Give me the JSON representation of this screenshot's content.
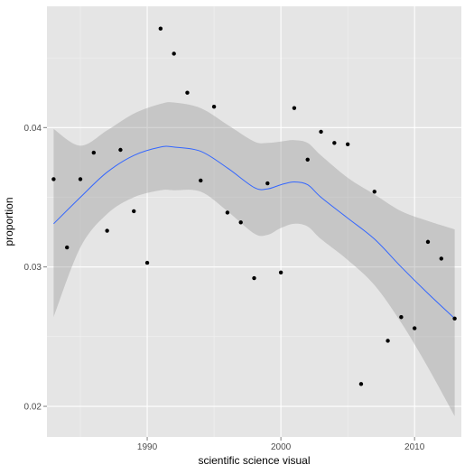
{
  "chart_data": {
    "type": "scatter",
    "title": "",
    "xlabel": "scientific science visual",
    "ylabel": "proportion",
    "xlim": [
      1982.5,
      2013.5
    ],
    "ylim": [
      0.0178,
      0.0487
    ],
    "x_ticks": [
      1990,
      2000,
      2010
    ],
    "x_tick_labels": [
      "1990",
      "2000",
      "2010"
    ],
    "y_ticks": [
      0.02,
      0.03,
      0.04
    ],
    "y_tick_labels": [
      "0.02",
      "0.03",
      "0.04"
    ],
    "grid": true,
    "background_color": "#e5e5e5",
    "grid_color": "#ffffff",
    "point_color": "#000000",
    "smooth_line_color": "#3366ff",
    "ribbon_color": "#999999",
    "points": [
      {
        "x": 1983,
        "y": 0.0363
      },
      {
        "x": 1984,
        "y": 0.0314
      },
      {
        "x": 1985,
        "y": 0.0363
      },
      {
        "x": 1986,
        "y": 0.0382
      },
      {
        "x": 1987,
        "y": 0.0326
      },
      {
        "x": 1988,
        "y": 0.0384
      },
      {
        "x": 1989,
        "y": 0.034
      },
      {
        "x": 1990,
        "y": 0.0303
      },
      {
        "x": 1991,
        "y": 0.0471
      },
      {
        "x": 1992,
        "y": 0.0453
      },
      {
        "x": 1993,
        "y": 0.0425
      },
      {
        "x": 1994,
        "y": 0.0362
      },
      {
        "x": 1995,
        "y": 0.0415
      },
      {
        "x": 1996,
        "y": 0.0339
      },
      {
        "x": 1997,
        "y": 0.0332
      },
      {
        "x": 1998,
        "y": 0.0292
      },
      {
        "x": 1999,
        "y": 0.036
      },
      {
        "x": 2000,
        "y": 0.0296
      },
      {
        "x": 2001,
        "y": 0.0414
      },
      {
        "x": 2002,
        "y": 0.0377
      },
      {
        "x": 2003,
        "y": 0.0397
      },
      {
        "x": 2004,
        "y": 0.0389
      },
      {
        "x": 2005,
        "y": 0.0388
      },
      {
        "x": 2006,
        "y": 0.0216
      },
      {
        "x": 2007,
        "y": 0.0354
      },
      {
        "x": 2008,
        "y": 0.0247
      },
      {
        "x": 2009,
        "y": 0.0264
      },
      {
        "x": 2010,
        "y": 0.0256
      },
      {
        "x": 2011,
        "y": 0.0318
      },
      {
        "x": 2012,
        "y": 0.0306
      },
      {
        "x": 2013,
        "y": 0.0263
      }
    ],
    "smooth": {
      "x": [
        1983,
        1985,
        1987,
        1989,
        1991,
        1992,
        1994,
        1996,
        1998,
        1999,
        2000,
        2001,
        2002,
        2003,
        2005,
        2007,
        2009,
        2011,
        2013
      ],
      "y": [
        0.0331,
        0.035,
        0.0368,
        0.038,
        0.0386,
        0.0386,
        0.0383,
        0.0371,
        0.0357,
        0.0356,
        0.0359,
        0.0361,
        0.0359,
        0.035,
        0.0335,
        0.032,
        0.03,
        0.0281,
        0.0263
      ],
      "lower": [
        0.0264,
        0.0314,
        0.0338,
        0.035,
        0.0355,
        0.0355,
        0.0354,
        0.034,
        0.0324,
        0.0323,
        0.0328,
        0.0331,
        0.0329,
        0.032,
        0.0305,
        0.0287,
        0.026,
        0.0228,
        0.0193
      ],
      "upper": [
        0.0399,
        0.0387,
        0.0398,
        0.041,
        0.0417,
        0.0418,
        0.0414,
        0.0402,
        0.039,
        0.0389,
        0.039,
        0.0391,
        0.0389,
        0.038,
        0.0364,
        0.0352,
        0.034,
        0.0333,
        0.0327
      ]
    }
  }
}
